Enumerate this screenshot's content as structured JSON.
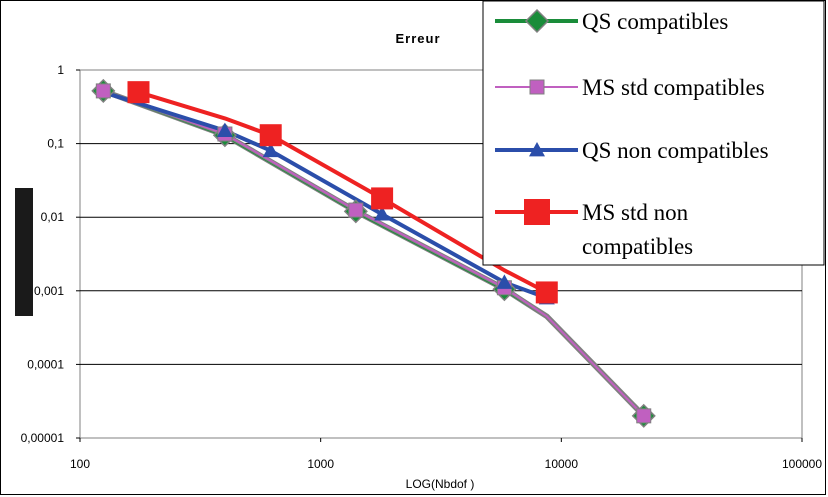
{
  "chart_data": {
    "type": "line",
    "title": "Erreur",
    "xlabel": "LOG(Nbdof )",
    "ylabel": "",
    "x_scale": "log",
    "y_scale": "log",
    "xlim": [
      100,
      100000
    ],
    "ylim": [
      1e-05,
      1
    ],
    "grid": "horizontal",
    "legend_position": "top-right",
    "x_tick_labels": [
      "100",
      "1000",
      "10000",
      "100000"
    ],
    "y_tick_labels": [
      "1",
      "0,1",
      "0,01",
      "0,001",
      "0,0001",
      "0,00001"
    ],
    "series": [
      {
        "name": "QS compatibles",
        "color": "#1a8c3a",
        "marker": "diamond",
        "x": [
          125,
          400,
          1400,
          5800,
          22000
        ],
        "y": [
          0.52,
          0.13,
          0.012,
          0.00105,
          2e-05
        ],
        "curve_x": [
          125,
          400,
          1400,
          5800,
          8700,
          22000
        ],
        "curve_y": [
          0.52,
          0.13,
          0.012,
          0.00105,
          0.00045,
          2e-05
        ]
      },
      {
        "name": "MS std compatibles",
        "color": "#c060c0",
        "marker": "square",
        "x": [
          125,
          400,
          1400,
          5800,
          22000
        ],
        "y": [
          0.52,
          0.135,
          0.0125,
          0.0011,
          2e-05
        ],
        "curve_x": [
          125,
          400,
          1400,
          5800,
          8700,
          22000
        ],
        "curve_y": [
          0.52,
          0.135,
          0.0125,
          0.0011,
          0.00045,
          2e-05
        ]
      },
      {
        "name": "QS non compatibles",
        "color": "#2b4eaa",
        "marker": "triangle",
        "x": [
          400,
          620,
          1800,
          5800,
          8700
        ],
        "y": [
          0.15,
          0.08,
          0.011,
          0.0013,
          0.0008
        ],
        "curve_x": [
          125,
          400,
          620,
          1800,
          5800,
          8700
        ],
        "curve_y": [
          0.5,
          0.15,
          0.08,
          0.011,
          0.0013,
          0.0008
        ]
      },
      {
        "name": "MS std non compatibles",
        "color": "#ee2222",
        "marker": "square",
        "x": [
          175,
          620,
          1800,
          8700
        ],
        "y": [
          0.5,
          0.13,
          0.018,
          0.00095
        ],
        "curve_x": [
          175,
          400,
          620,
          1800,
          5800,
          8700
        ],
        "curve_y": [
          0.5,
          0.22,
          0.13,
          0.018,
          0.0019,
          0.00095
        ]
      }
    ]
  },
  "legend": {
    "items": [
      {
        "label_lines": [
          "QS compatibles"
        ]
      },
      {
        "label_lines": [
          "MS std compatibles"
        ]
      },
      {
        "label_lines": [
          "QS non compatibles"
        ]
      },
      {
        "label_lines": [
          "MS std non",
          "compatibles"
        ]
      }
    ]
  }
}
